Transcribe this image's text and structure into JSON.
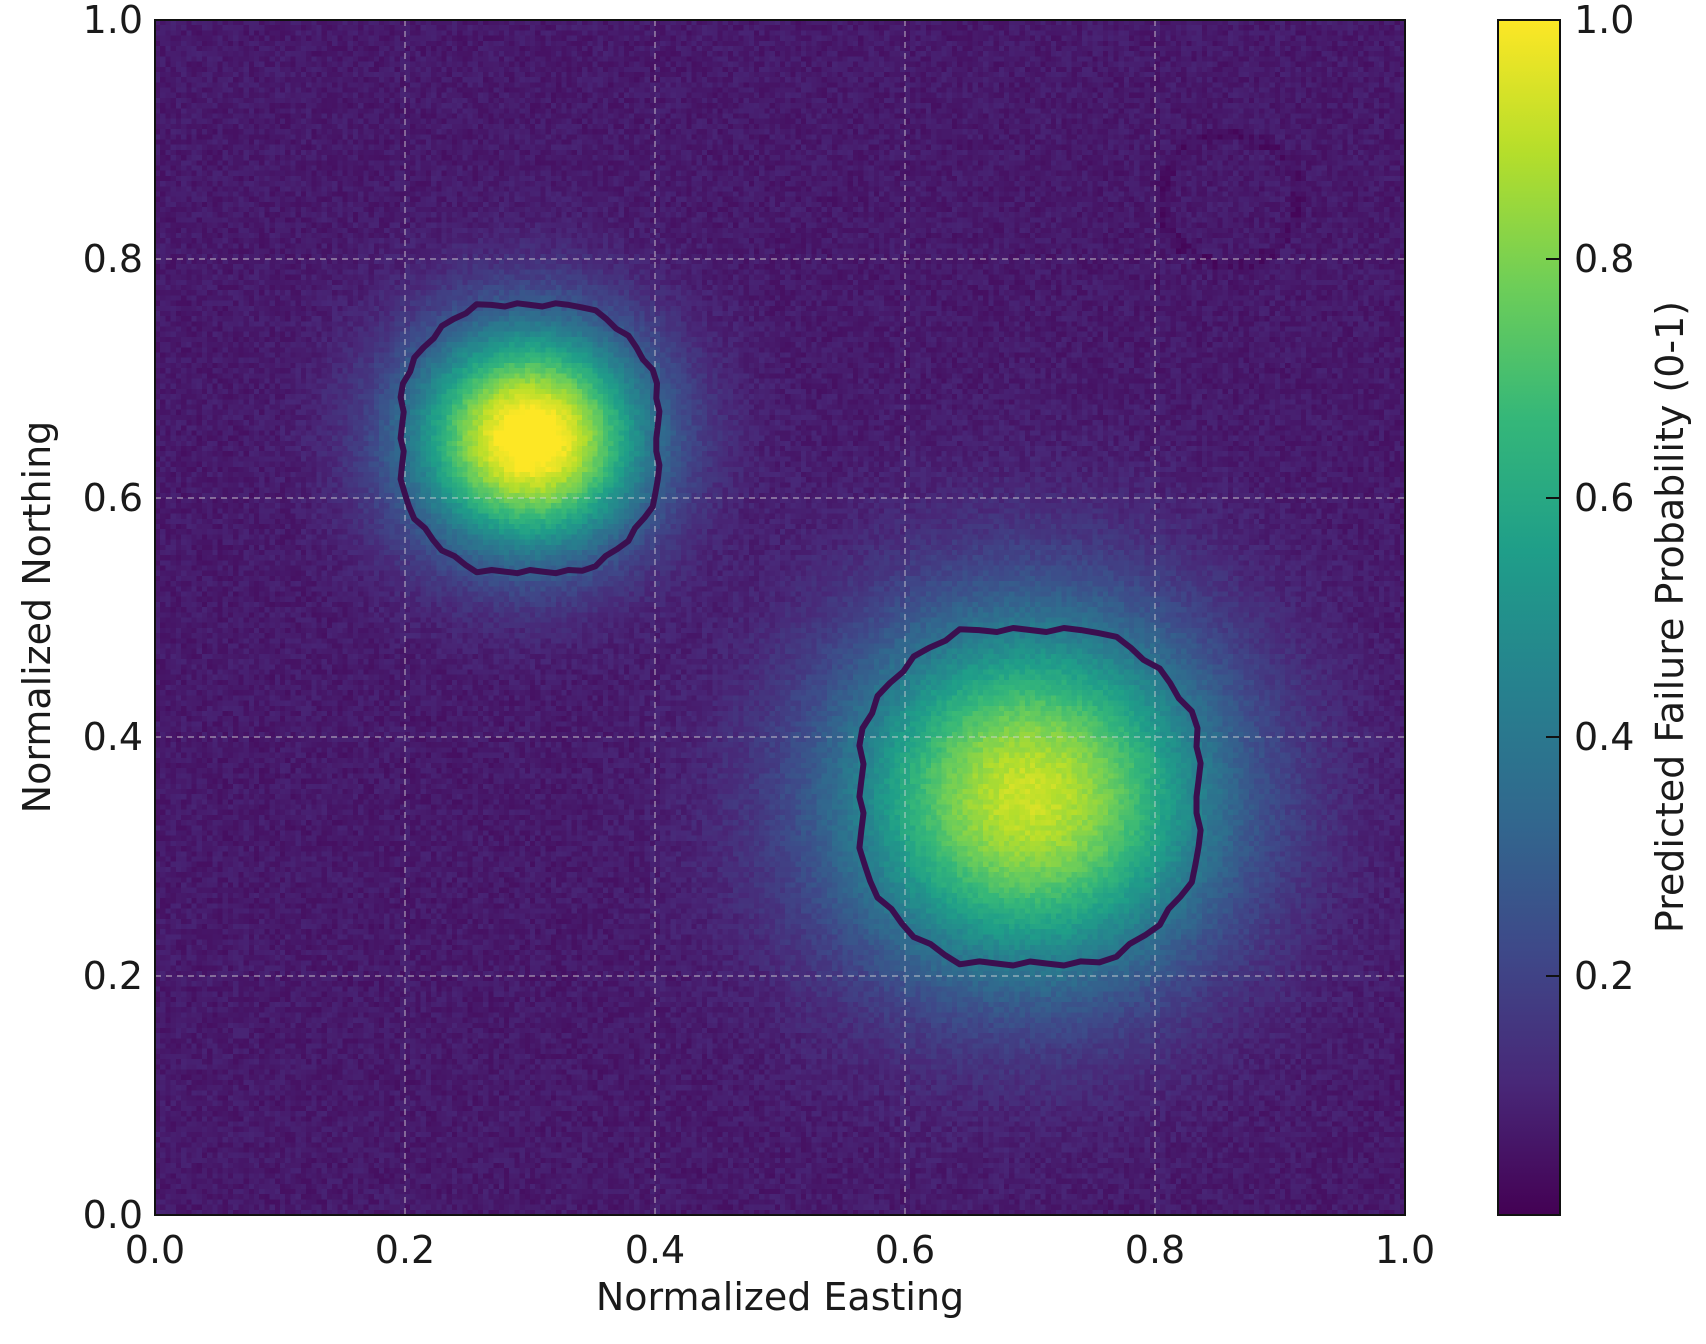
{
  "chart_data": {
    "type": "heatmap",
    "title": "",
    "xlabel": "Normalized Easting",
    "ylabel": "Normalized Northing",
    "xlim": [
      0.0,
      1.0
    ],
    "ylim": [
      0.0,
      1.0
    ],
    "x_ticks": [
      "0.0",
      "0.2",
      "0.4",
      "0.6",
      "0.8",
      "1.0"
    ],
    "y_ticks": [
      "0.0",
      "0.2",
      "0.4",
      "0.6",
      "0.8",
      "1.0"
    ],
    "grid": true,
    "colormap": "viridis",
    "colorbar": {
      "label": "Predicted Failure Probability (0-1)",
      "range": [
        0.0,
        1.0
      ],
      "ticks": [
        "0.2",
        "0.4",
        "0.6",
        "0.8",
        "1.0"
      ]
    },
    "hotspots": [
      {
        "center": [
          0.3,
          0.65
        ],
        "peak": 1.0,
        "sigma": 0.065
      },
      {
        "center": [
          0.7,
          0.35
        ],
        "peak": 0.85,
        "sigma": 0.105
      }
    ],
    "background_level": 0.07,
    "faint_feature": {
      "center": [
        0.86,
        0.85
      ],
      "radius": 0.055
    },
    "contours": [
      {
        "level": 0.5,
        "center": [
          0.3,
          0.65
        ],
        "radius_x": 0.11,
        "radius_y": 0.12
      },
      {
        "level": 0.5,
        "center": [
          0.7,
          0.35
        ],
        "radius_x": 0.145,
        "radius_y": 0.15
      }
    ],
    "colors": {
      "viridis": [
        "#440154",
        "#482878",
        "#3e4989",
        "#31688e",
        "#26828e",
        "#1f9e89",
        "#35b779",
        "#6ece58",
        "#b5de2b",
        "#fde725"
      ],
      "contour": "#3b0f4f",
      "grid": "#d8d8d8"
    }
  }
}
